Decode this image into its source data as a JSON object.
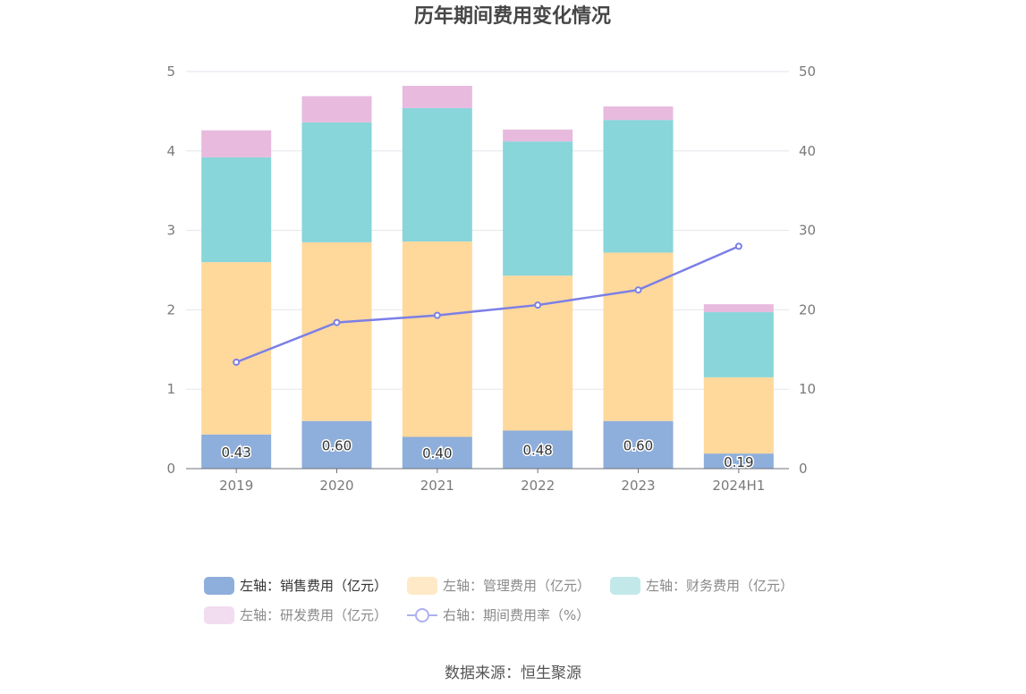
{
  "chart_data": {
    "type": "bar",
    "title": "历年期间费用变化情况",
    "categories": [
      "2019",
      "2020",
      "2021",
      "2022",
      "2023",
      "2024H1"
    ],
    "stacked": true,
    "left_axis": {
      "ylim": [
        0,
        5
      ],
      "ticks": [
        "0",
        "1",
        "2",
        "3",
        "4",
        "5"
      ]
    },
    "right_axis": {
      "ylim": [
        0,
        50
      ],
      "ticks": [
        "0",
        "10",
        "20",
        "30",
        "40",
        "50"
      ]
    },
    "series": [
      {
        "name": "左轴：销售费用（亿元）",
        "axis": "left",
        "type": "bar",
        "color": "#8eaedb",
        "values": [
          0.43,
          0.6,
          0.4,
          0.48,
          0.6,
          0.19
        ],
        "labels": [
          "0.43",
          "0.60",
          "0.40",
          "0.48",
          "0.60",
          "0.19"
        ]
      },
      {
        "name": "左轴：管理费用（亿元）",
        "axis": "left",
        "type": "bar",
        "color": "#ffd89c",
        "values": [
          2.17,
          2.25,
          2.46,
          1.95,
          2.12,
          0.96
        ]
      },
      {
        "name": "左轴：财务费用（亿元）",
        "axis": "left",
        "type": "bar",
        "color": "#88d5da",
        "values": [
          1.32,
          1.51,
          1.68,
          1.69,
          1.67,
          0.82
        ]
      },
      {
        "name": "左轴：研发费用（亿元）",
        "axis": "left",
        "type": "bar",
        "color": "#e8bade",
        "values": [
          0.34,
          0.33,
          0.28,
          0.15,
          0.17,
          0.1
        ]
      },
      {
        "name": "右轴：期间费用率（%）",
        "axis": "right",
        "type": "line",
        "color": "#7b7fe6",
        "values": [
          13.4,
          18.4,
          19.3,
          20.6,
          22.5,
          28.0
        ]
      }
    ],
    "grid": true,
    "legend_position": "bottom",
    "legend_colors": [
      "#8eaedb",
      "#ffe9c6",
      "#c2e8ea",
      "#f2dcef",
      "#aeb0ee"
    ]
  },
  "source": "数据来源：恒生聚源"
}
